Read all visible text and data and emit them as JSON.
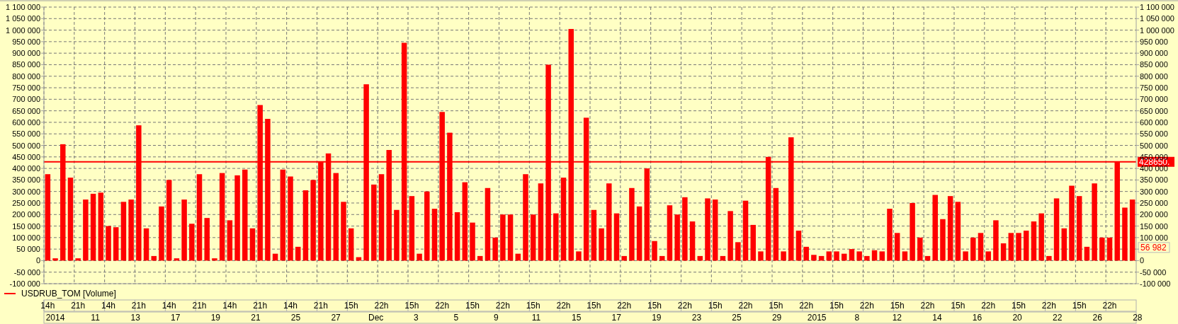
{
  "chart_data": {
    "type": "bar",
    "categories": [
      "14h",
      null,
      null,
      null,
      "21h",
      null,
      null,
      null,
      "14h",
      null,
      null,
      null,
      "21h",
      null,
      null,
      null,
      "14h",
      null,
      null,
      null,
      "21h",
      null,
      null,
      null,
      "14h",
      null,
      null,
      null,
      "21h",
      null,
      null,
      null,
      "14h",
      null,
      null,
      null,
      "21h",
      null,
      null,
      null,
      "15h",
      null,
      null,
      null,
      "22h",
      null,
      null,
      null,
      "15h",
      null,
      null,
      null,
      "22h",
      null,
      null,
      null,
      "15h",
      null,
      null,
      null,
      "22h",
      null,
      null,
      null,
      "15h",
      null,
      null,
      null,
      "22h",
      null,
      null,
      null,
      "15h",
      null,
      null,
      null,
      "22h",
      null,
      null,
      null,
      "15h",
      null,
      null,
      null,
      "22h",
      null,
      null,
      null,
      "15h",
      null,
      null,
      null,
      "22h",
      null,
      null,
      null,
      "15h",
      null,
      null,
      null,
      "22h",
      null,
      null,
      null,
      "15h",
      null,
      null,
      null,
      "22h",
      null,
      null,
      null,
      "15h",
      null,
      null,
      null,
      "22h",
      null,
      null,
      null,
      "15h",
      null,
      null,
      null,
      "22h",
      null,
      null,
      null,
      "15h",
      null,
      null,
      null,
      "22h",
      null,
      null,
      null,
      "15h",
      null,
      null,
      null,
      "22h",
      null,
      null,
      null
    ],
    "series": [
      {
        "name": "USDRUB_TOM [Volume]",
        "color": "#ff0000",
        "values": [
          375000,
          10000,
          505000,
          360000,
          10000,
          265000,
          290000,
          295000,
          150000,
          145000,
          255000,
          265000,
          587000,
          140000,
          20000,
          235000,
          350000,
          10000,
          265000,
          160000,
          375000,
          185000,
          10000,
          380000,
          175000,
          370000,
          395000,
          140000,
          675000,
          615000,
          30000,
          395000,
          365000,
          60000,
          305000,
          350000,
          430000,
          465000,
          380000,
          255000,
          140000,
          15000,
          765000,
          330000,
          375000,
          480000,
          220000,
          945000,
          280000,
          30000,
          300000,
          225000,
          645000,
          555000,
          210000,
          340000,
          165000,
          20000,
          315000,
          100000,
          200000,
          200000,
          30000,
          375000,
          200000,
          335000,
          850000,
          205000,
          360000,
          1005000,
          40000,
          620000,
          220000,
          140000,
          335000,
          205000,
          20000,
          315000,
          235000,
          400000,
          85000,
          20000,
          240000,
          200000,
          275000,
          170000,
          20000,
          270000,
          265000,
          20000,
          215000,
          80000,
          260000,
          155000,
          40000,
          450000,
          315000,
          40000,
          535000,
          130000,
          60000,
          25000,
          20000,
          40000,
          40000,
          30000,
          50000,
          40000,
          20000,
          45000,
          40000,
          225000,
          120000,
          40000,
          250000,
          100000,
          20000,
          285000,
          180000,
          280000,
          255000,
          40000,
          100000,
          120000,
          40000,
          175000,
          75000,
          120000,
          120000,
          130000,
          170000,
          205000,
          20000,
          270000,
          140000,
          325000,
          280000,
          60000,
          335000,
          100000,
          100000,
          430000,
          230000,
          265000
        ]
      }
    ],
    "ylim": [
      -100000,
      1100000
    ],
    "yticks": [
      {
        "value": -100000,
        "label": "-100 000"
      },
      {
        "value": -50000,
        "label": "-50 000"
      },
      0,
      {
        "value": 50000,
        "label": "50 000"
      },
      {
        "value": 100000,
        "label": "100 000"
      },
      {
        "value": 150000,
        "label": "150 000"
      },
      {
        "value": 200000,
        "label": "200 000"
      },
      {
        "value": 250000,
        "label": "250 000"
      },
      {
        "value": 300000,
        "label": "300 000"
      },
      {
        "value": 350000,
        "label": "350 000"
      },
      {
        "value": 400000,
        "label": "400 000"
      },
      {
        "value": 450000,
        "label": "450 000"
      },
      {
        "value": 500000,
        "label": "500 000"
      },
      {
        "value": 550000,
        "label": "550 000"
      },
      {
        "value": 600000,
        "label": "600 000"
      },
      {
        "value": 650000,
        "label": "650 000"
      },
      {
        "value": 700000,
        "label": "700 000"
      },
      {
        "value": 750000,
        "label": "750 000"
      },
      {
        "value": 800000,
        "label": "800 000"
      },
      {
        "value": 850000,
        "label": "850 000"
      },
      {
        "value": 900000,
        "label": "900 000"
      },
      {
        "value": 950000,
        "label": "950 000"
      },
      {
        "value": 1000000,
        "label": "1 000 000"
      },
      {
        "value": 1050000,
        "label": "1 050 000"
      },
      {
        "value": 1100000,
        "label": "1 100 000"
      }
    ],
    "y2lim": [
      -100000,
      1100000
    ],
    "y2ticks": [
      {
        "value": -100000,
        "label": "-100 000"
      },
      {
        "value": -50000,
        "label": "-50 000"
      },
      0,
      {
        "value": 50000,
        "label": null
      },
      {
        "value": 100000,
        "label": "100 000"
      },
      {
        "value": 150000,
        "label": "150 000"
      },
      {
        "value": 200000,
        "label": "200 000"
      },
      {
        "value": 250000,
        "label": "250 000"
      },
      {
        "value": 300000,
        "label": "300 000"
      },
      {
        "value": 350000,
        "label": "350 000"
      },
      {
        "value": 400000,
        "label": "400 000"
      },
      {
        "value": 450000,
        "label": "450 000"
      },
      {
        "value": 500000,
        "label": "500 000"
      },
      {
        "value": 550000,
        "label": "550 000"
      },
      {
        "value": 600000,
        "label": "600 000"
      },
      {
        "value": 650000,
        "label": "650 000"
      },
      {
        "value": 700000,
        "label": "700 000"
      },
      {
        "value": 750000,
        "label": "750 000"
      },
      {
        "value": 800000,
        "label": "800 000"
      },
      {
        "value": 850000,
        "label": "850 000"
      },
      {
        "value": 900000,
        "label": "900 000"
      },
      {
        "value": 950000,
        "label": "950 000"
      },
      {
        "value": 1000000,
        "label": "1 000 000"
      },
      {
        "value": 1050000,
        "label": "1 050 000"
      },
      {
        "value": 1100000,
        "label": "1 100 000"
      }
    ],
    "ref_lines": [
      {
        "axis": "y2",
        "value": 428650,
        "label": "428650.",
        "color": "#ff0000"
      }
    ],
    "annotations": [
      {
        "text": "56 982",
        "y": 56982
      },
      "2014",
      "11",
      "13",
      "17",
      "19",
      "21",
      "25",
      "27",
      "Dec",
      "3",
      "5",
      "9",
      "11",
      "15",
      "17",
      "19",
      "23",
      "25",
      "29",
      "2015",
      "8",
      "12",
      "14",
      "16",
      "20",
      "22",
      "26",
      "28"
    ],
    "grid": true,
    "legend": "bottom left"
  }
}
